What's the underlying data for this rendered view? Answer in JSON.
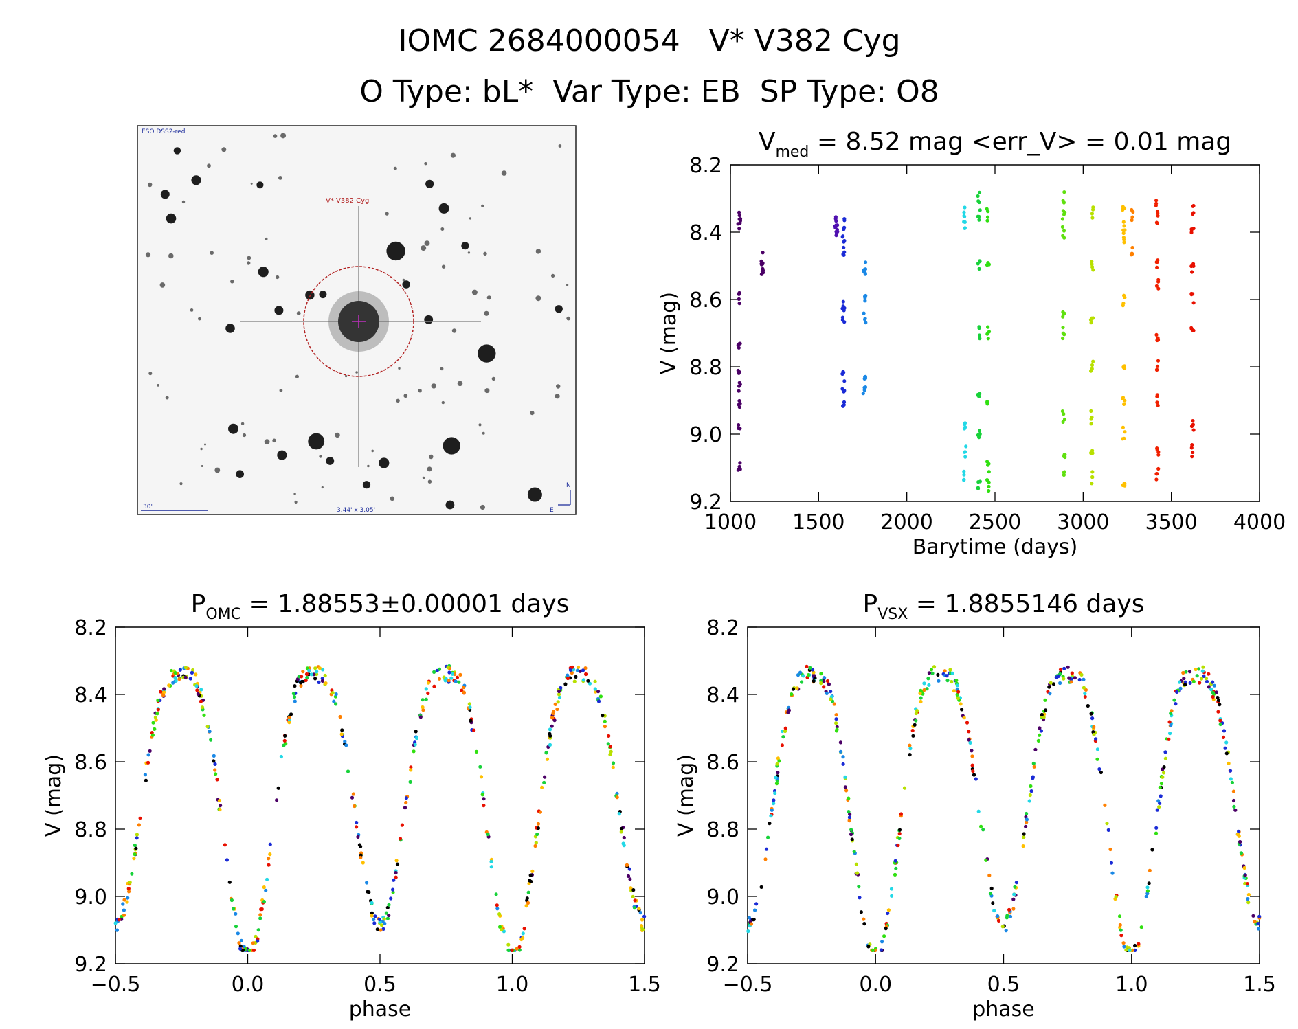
{
  "header": {
    "title": "IOMC 2684000054   V* V382 Cyg",
    "subtitle": "O Type: bL*  Var Type: EB  SP Type: O8"
  },
  "finder": {
    "survey_label": "ESO DSS2-red",
    "target_label": "V* V382 Cyg",
    "scale_label": "30\"",
    "field_label": "3.44' x 3.05'",
    "north_label": "N",
    "east_label": "E"
  },
  "chart_data": [
    {
      "id": "lightcurve",
      "type": "scatter",
      "title": "V_med = 8.52 mag <err_V> = 0.01 mag",
      "title_parts": {
        "a": "V",
        "a_sub": "med",
        "b": " = 8.52 mag <err_V> = 0.01 mag"
      },
      "xlabel": "Barytime (days)",
      "ylabel": "V (mag)",
      "xlim": [
        1000,
        4000
      ],
      "ylim": [
        9.2,
        8.2
      ],
      "xticks": [
        1000,
        1500,
        2000,
        2500,
        3000,
        3500,
        4000
      ],
      "xtick_labels": [
        "1000",
        "1500",
        "2000",
        "2500",
        "3000",
        "3500",
        "4000"
      ],
      "yticks": [
        8.2,
        8.4,
        8.6,
        8.8,
        9.0,
        9.2
      ],
      "ytick_labels": [
        "8.2",
        "8.4",
        "8.6",
        "8.8",
        "9.0",
        "9.2"
      ],
      "epochs": [
        {
          "t": 1050,
          "color": "#4b0066",
          "values": [
            8.36,
            8.38,
            8.6,
            8.75,
            8.8,
            8.86,
            8.92,
            8.97,
            9.1
          ]
        },
        {
          "t": 1180,
          "color": "#4b0066",
          "values": [
            8.48,
            8.5,
            8.52
          ]
        },
        {
          "t": 1600,
          "color": "#5010b0",
          "values": [
            8.37,
            8.39,
            8.38
          ]
        },
        {
          "t": 1640,
          "color": "#1a2bd6",
          "values": [
            8.38,
            8.42,
            8.45,
            8.62,
            8.65,
            8.82,
            8.86,
            8.92
          ]
        },
        {
          "t": 1760,
          "color": "#1a88e6",
          "values": [
            8.5,
            8.53,
            8.6,
            8.66,
            8.82,
            8.88
          ]
        },
        {
          "t": 2330,
          "color": "#22d8e6",
          "values": [
            8.34,
            8.38,
            8.98,
            9.05,
            9.12
          ]
        },
        {
          "t": 2410,
          "color": "#18d23a",
          "values": [
            8.3,
            8.35,
            8.5,
            8.7,
            8.9,
            9.0,
            9.15
          ]
        },
        {
          "t": 2460,
          "color": "#30e010",
          "values": [
            8.35,
            8.5,
            8.7,
            8.9,
            9.1,
            9.15
          ]
        },
        {
          "t": 2890,
          "color": "#60e010",
          "values": [
            8.3,
            8.35,
            8.4,
            8.65,
            8.7,
            8.95,
            9.05,
            9.13
          ]
        },
        {
          "t": 3050,
          "color": "#b8e000",
          "values": [
            8.34,
            8.5,
            8.65,
            8.8,
            8.95,
            9.05,
            9.13
          ]
        },
        {
          "t": 3230,
          "color": "#ffc000",
          "values": [
            8.33,
            8.38,
            8.42,
            8.6,
            8.8,
            8.9,
            9.0,
            9.15
          ]
        },
        {
          "t": 3280,
          "color": "#ff8000",
          "values": [
            8.35,
            8.45
          ]
        },
        {
          "t": 3420,
          "color": "#f02000",
          "values": [
            8.32,
            8.36,
            8.5,
            8.55,
            8.72,
            8.8,
            8.9,
            9.05,
            9.12
          ]
        },
        {
          "t": 3620,
          "color": "#e81000",
          "values": [
            8.33,
            8.4,
            8.5,
            8.6,
            8.68,
            8.98,
            9.05
          ]
        }
      ]
    },
    {
      "id": "phase_omc",
      "type": "scatter",
      "title": "P_OMC = 1.88553±0.00001 days",
      "title_parts": {
        "a": "P",
        "a_sub": "OMC",
        "b": " = 1.88553±0.00001 days"
      },
      "xlabel": "phase",
      "ylabel": "V (mag)",
      "xlim": [
        -0.5,
        1.5
      ],
      "ylim": [
        9.2,
        8.2
      ],
      "xticks": [
        -0.5,
        0.0,
        0.5,
        1.0,
        1.5
      ],
      "xtick_labels": [
        "−0.5",
        "0.0",
        "0.5",
        "1.0",
        "1.5"
      ],
      "yticks": [
        8.2,
        8.4,
        8.6,
        8.8,
        9.0,
        9.2
      ],
      "ytick_labels": [
        "8.2",
        "8.4",
        "8.6",
        "8.8",
        "9.0",
        "9.2"
      ],
      "curve": {
        "mean": 8.72,
        "half_amplitude": 0.39,
        "primary_depth": 0.43,
        "secondary_depth": 0.38,
        "sharpness": 0.7
      }
    },
    {
      "id": "phase_vsx",
      "type": "scatter",
      "title": "P_VSX = 1.8855146 days",
      "title_parts": {
        "a": "P",
        "a_sub": "VSX",
        "b": " = 1.8855146 days"
      },
      "xlabel": "phase",
      "ylabel": "V (mag)",
      "xlim": [
        -0.5,
        1.5
      ],
      "ylim": [
        9.2,
        8.2
      ],
      "xticks": [
        -0.5,
        0.0,
        0.5,
        1.0,
        1.5
      ],
      "xtick_labels": [
        "−0.5",
        "0.0",
        "0.5",
        "1.0",
        "1.5"
      ],
      "yticks": [
        8.2,
        8.4,
        8.6,
        8.8,
        9.0,
        9.2
      ],
      "ytick_labels": [
        "8.2",
        "8.4",
        "8.6",
        "8.8",
        "9.0",
        "9.2"
      ],
      "curve": {
        "mean": 8.72,
        "half_amplitude": 0.39,
        "primary_depth": 0.43,
        "secondary_depth": 0.38,
        "sharpness": 0.7
      }
    }
  ],
  "palette": [
    "#000000",
    "#4b0066",
    "#1a2bd6",
    "#1a88e6",
    "#22d8e6",
    "#18d23a",
    "#30e010",
    "#b8e000",
    "#ffc000",
    "#ff8000",
    "#e81000"
  ]
}
